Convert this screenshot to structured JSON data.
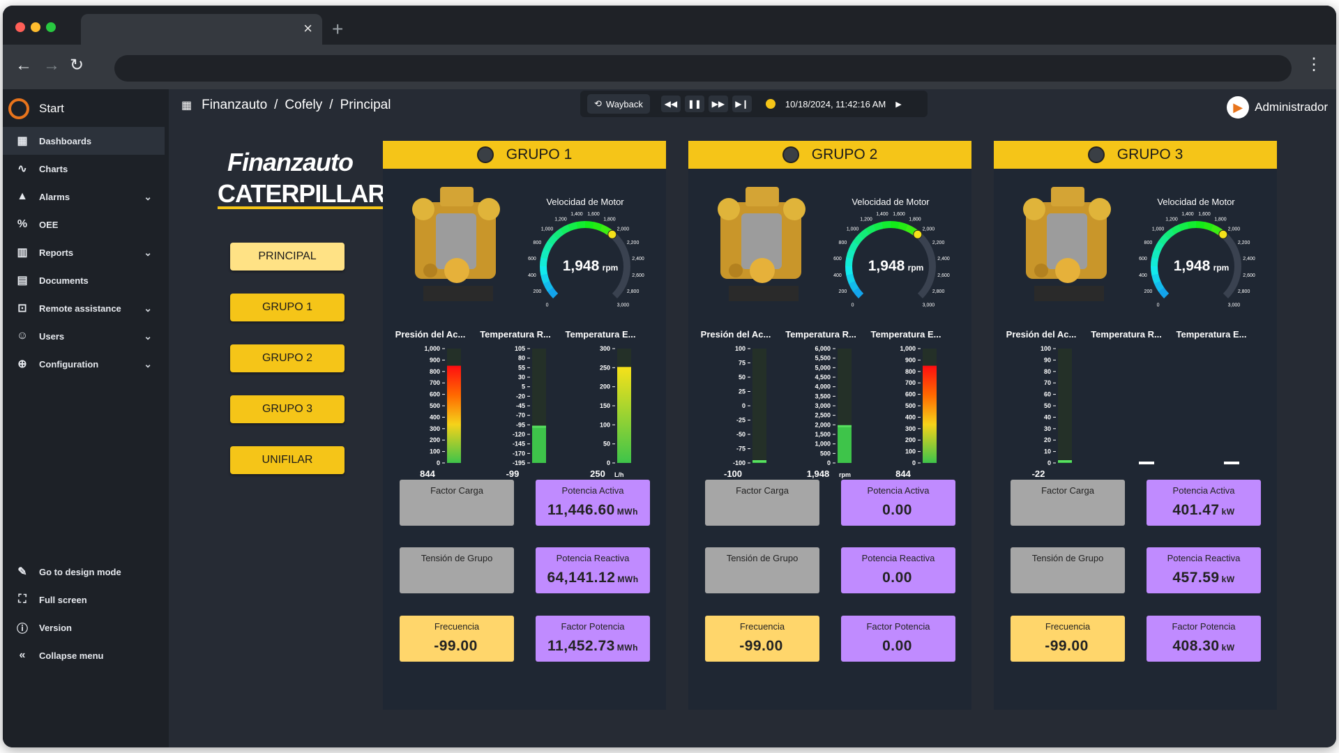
{
  "browser": {
    "tab_close": "×",
    "new_tab": "+"
  },
  "sidebar": {
    "start_label": "Start",
    "items": [
      {
        "label": "Dashboards",
        "icon": "dashboard-icon"
      },
      {
        "label": "Charts",
        "icon": "chart-icon"
      },
      {
        "label": "Alarms",
        "icon": "alarm-icon"
      },
      {
        "label": "OEE",
        "icon": "oee-icon"
      },
      {
        "label": "Reports",
        "icon": "report-icon"
      },
      {
        "label": "Documents",
        "icon": "document-icon"
      },
      {
        "label": "Remote assistance",
        "icon": "remote-assistance-icon"
      },
      {
        "label": "Users",
        "icon": "users-icon"
      },
      {
        "label": "Configuration",
        "icon": "configuration-icon"
      }
    ],
    "bottom": [
      {
        "label": "Go to design mode",
        "icon": "design-mode-icon"
      },
      {
        "label": "Full screen",
        "icon": "fullscreen-icon"
      },
      {
        "label": "Version",
        "icon": "info-icon"
      },
      {
        "label": "Collapse menu",
        "icon": "collapse-icon"
      }
    ]
  },
  "breadcrumb": {
    "items": [
      "Finanzauto",
      "Cofely",
      "Principal"
    ],
    "sep": "/"
  },
  "wayback": {
    "label": "Wayback",
    "timestamp": "10/18/2024, 11:42:16 AM"
  },
  "user": {
    "name": "Administrador"
  },
  "brand": {
    "line1": "Finanzauto",
    "line2": "CATERPILLAR"
  },
  "nav_buttons": [
    "PRINCIPAL",
    "GRUPO 1",
    "GRUPO 2",
    "GRUPO 3",
    "UNIFILAR"
  ],
  "colors": {
    "accent": "#f5c518",
    "purple_tile": "#c08bff",
    "grey_tile": "#a6a6a6",
    "yellow_tile": "#ffd66b",
    "panel": "#1f2733"
  },
  "gauge_ticks": [
    "0",
    "200",
    "400",
    "600",
    "800",
    "1,000",
    "1,200",
    "1,400",
    "1,600",
    "1,800",
    "2,000",
    "2,200",
    "2,400",
    "2,600",
    "2,800",
    "3,000"
  ],
  "groups": [
    {
      "title": "GRUPO 1",
      "gauge": {
        "title": "Velocidad de Motor",
        "value": 1948,
        "display": "1,948",
        "unit": "rpm",
        "max": 3000
      },
      "bars": [
        {
          "title": "Presión del Ac...",
          "ticks": [
            "1,000",
            "900",
            "800",
            "700",
            "600",
            "500",
            "400",
            "300",
            "200",
            "100",
            "0"
          ],
          "min": 0,
          "max": 1000,
          "value": 844,
          "display": "844",
          "unit": "",
          "fill": "heat"
        },
        {
          "title": "Temperatura R...",
          "ticks": [
            "105",
            "80",
            "55",
            "30",
            "5",
            "-20",
            "-45",
            "-70",
            "-95",
            "-120",
            "-145",
            "-170",
            "-195"
          ],
          "min": -195,
          "max": 105,
          "value": -99,
          "display": "-99",
          "unit": "",
          "fill": "green"
        },
        {
          "title": "Temperatura E...",
          "ticks": [
            "300",
            "250",
            "200",
            "150",
            "100",
            "50",
            "0"
          ],
          "min": 0,
          "max": 300,
          "value": 250,
          "display": "250",
          "unit": "L/h",
          "fill": "yellowgreen"
        }
      ],
      "tiles": [
        {
          "label": "Factor Carga",
          "value": "",
          "unit": "",
          "kind": "grey"
        },
        {
          "label": "Potencia Activa",
          "value": "11,446.60",
          "unit": "MWh",
          "kind": "purp"
        },
        {
          "label": "Tensión de Grupo",
          "value": "",
          "unit": "",
          "kind": "grey"
        },
        {
          "label": "Potencia Reactiva",
          "value": "64,141.12",
          "unit": "MWh",
          "kind": "purp"
        },
        {
          "label": "Frecuencia",
          "value": "-99.00",
          "unit": "",
          "kind": "yel"
        },
        {
          "label": "Factor Potencia",
          "value": "11,452.73",
          "unit": "MWh",
          "kind": "purp"
        }
      ]
    },
    {
      "title": "GRUPO 2",
      "gauge": {
        "title": "Velocidad de Motor",
        "value": 1948,
        "display": "1,948",
        "unit": "rpm",
        "max": 3000
      },
      "bars": [
        {
          "title": "Presión del Ac...",
          "ticks": [
            "100",
            "75",
            "50",
            "25",
            "0",
            "-25",
            "-50",
            "-75",
            "-100"
          ],
          "min": -100,
          "max": 100,
          "value": -100,
          "display": "-100",
          "unit": "",
          "fill": "green"
        },
        {
          "title": "Temperatura R...",
          "ticks": [
            "6,000",
            "5,500",
            "5,000",
            "4,500",
            "4,000",
            "3,500",
            "3,000",
            "2,500",
            "2,000",
            "1,500",
            "1,000",
            "500",
            "0"
          ],
          "min": 0,
          "max": 6000,
          "value": 1948,
          "display": "1,948",
          "unit": "rpm",
          "fill": "green"
        },
        {
          "title": "Temperatura E...",
          "ticks": [
            "1,000",
            "900",
            "800",
            "700",
            "600",
            "500",
            "400",
            "300",
            "200",
            "100",
            "0"
          ],
          "min": 0,
          "max": 1000,
          "value": 844,
          "display": "844",
          "unit": "",
          "fill": "heat"
        }
      ],
      "tiles": [
        {
          "label": "Factor Carga",
          "value": "",
          "unit": "",
          "kind": "grey"
        },
        {
          "label": "Potencia Activa",
          "value": "0.00",
          "unit": "",
          "kind": "purp"
        },
        {
          "label": "Tensión de Grupo",
          "value": "",
          "unit": "",
          "kind": "grey"
        },
        {
          "label": "Potencia Reactiva",
          "value": "0.00",
          "unit": "",
          "kind": "purp"
        },
        {
          "label": "Frecuencia",
          "value": "-99.00",
          "unit": "",
          "kind": "yel"
        },
        {
          "label": "Factor Potencia",
          "value": "0.00",
          "unit": "",
          "kind": "purp"
        }
      ]
    },
    {
      "title": "GRUPO 3",
      "gauge": {
        "title": "Velocidad de Motor",
        "value": 1948,
        "display": "1,948",
        "unit": "rpm",
        "max": 3000
      },
      "bars": [
        {
          "title": "Presión del Ac...",
          "ticks": [
            "100",
            "90",
            "80",
            "70",
            "60",
            "50",
            "40",
            "30",
            "20",
            "10",
            "0"
          ],
          "min": 0,
          "max": 100,
          "value": -22,
          "display": "-22",
          "unit": "",
          "fill": "green"
        },
        {
          "title": "Temperatura R...",
          "ticks": [],
          "min": 0,
          "max": 100,
          "value": null,
          "display": "—",
          "unit": "",
          "fill": "none"
        },
        {
          "title": "Temperatura E...",
          "ticks": [],
          "min": 0,
          "max": 100,
          "value": null,
          "display": "—",
          "unit": "",
          "fill": "none"
        }
      ],
      "tiles": [
        {
          "label": "Factor Carga",
          "value": "",
          "unit": "",
          "kind": "grey"
        },
        {
          "label": "Potencia Activa",
          "value": "401.47",
          "unit": "kW",
          "kind": "purp"
        },
        {
          "label": "Tensión de Grupo",
          "value": "",
          "unit": "",
          "kind": "grey"
        },
        {
          "label": "Potencia Reactiva",
          "value": "457.59",
          "unit": "kW",
          "kind": "purp"
        },
        {
          "label": "Frecuencia",
          "value": "-99.00",
          "unit": "",
          "kind": "yel"
        },
        {
          "label": "Factor Potencia",
          "value": "408.30",
          "unit": "kW",
          "kind": "purp"
        }
      ]
    }
  ]
}
